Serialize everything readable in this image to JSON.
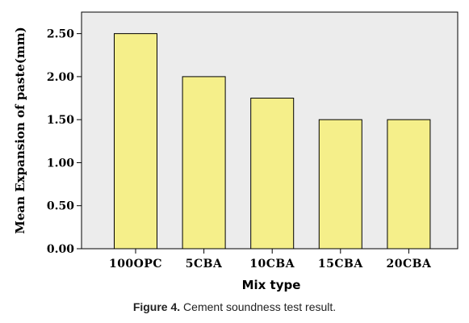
{
  "chart_data": {
    "type": "bar",
    "categories": [
      "100OPC",
      "5CBA",
      "10CBA",
      "15CBA",
      "20CBA"
    ],
    "values": [
      2.5,
      2.0,
      1.75,
      1.5,
      1.5
    ],
    "xlabel": "Mix type",
    "ylabel": "Mean Expansion of paste(mm)",
    "ylim": [
      0,
      2.75
    ],
    "yticks": [
      "0.00",
      "0.50",
      "1.00",
      "1.50",
      "2.00",
      "2.50"
    ],
    "grid": false,
    "legend": "none",
    "colors": {
      "bar_fill": "#f5ef8a",
      "bar_stroke": "#000000",
      "plot_bg": "#ececec"
    }
  },
  "caption": {
    "label": "Figure 4.",
    "text": " Cement soundness test result."
  }
}
